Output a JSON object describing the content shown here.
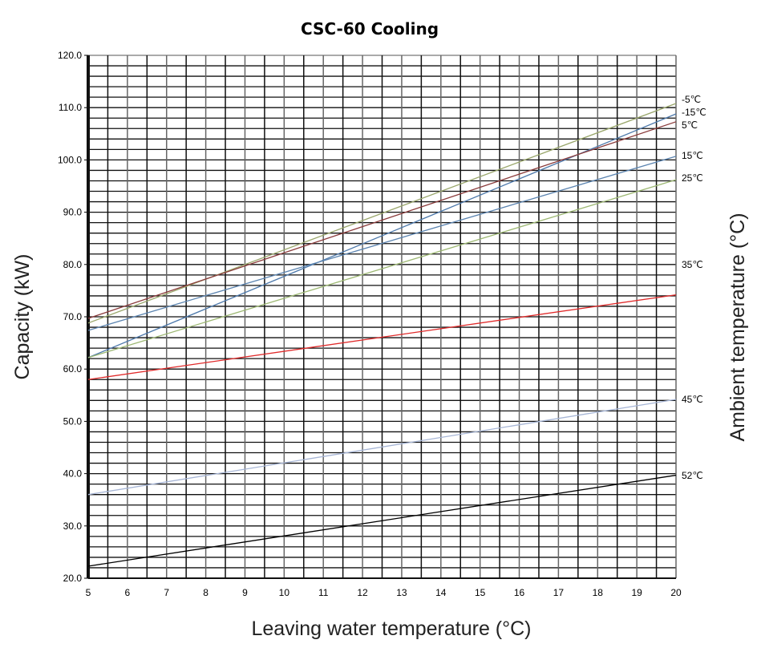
{
  "chart_data": {
    "type": "line",
    "title": "CSC-60 Cooling",
    "xlabel": "Leaving water temperature (°C)",
    "ylabel": "Capacity (kW)",
    "y2label": "Ambient temperature (°C)",
    "xlim": [
      5,
      20
    ],
    "ylim": [
      20,
      120
    ],
    "xticks": [
      "5",
      "6",
      "7",
      "8",
      "9",
      "10",
      "11",
      "12",
      "13",
      "14",
      "15",
      "16",
      "17",
      "18",
      "19",
      "20"
    ],
    "yticks": [
      "20.0",
      "30.0",
      "40.0",
      "50.0",
      "60.0",
      "70.0",
      "80.0",
      "90.0",
      "100.0",
      "110.0",
      "120.0"
    ],
    "grid": true,
    "series": [
      {
        "name": "-5℃",
        "color": "#9aa76c",
        "x": [
          5,
          20
        ],
        "y": [
          68.8,
          110.8
        ]
      },
      {
        "name": "-15℃",
        "color": "#4d79ab",
        "x": [
          5,
          20
        ],
        "y": [
          62.2,
          108.8
        ]
      },
      {
        "name": "5℃",
        "color": "#8a3b3b",
        "x": [
          5,
          20
        ],
        "y": [
          69.7,
          107.3
        ]
      },
      {
        "name": "15℃",
        "color": "#5b84b0",
        "x": [
          5,
          20
        ],
        "y": [
          67.4,
          100.7
        ]
      },
      {
        "name": "25℃",
        "color": "#9db873",
        "x": [
          5,
          20
        ],
        "y": [
          62.2,
          96.2
        ]
      },
      {
        "name": "35℃",
        "color": "#e02a2a",
        "x": [
          5,
          20
        ],
        "y": [
          58.0,
          74.2
        ]
      },
      {
        "name": "45℃",
        "color": "#a7b6d6",
        "x": [
          5,
          20
        ],
        "y": [
          36.0,
          54.2
        ]
      },
      {
        "name": "52℃",
        "color": "#000000",
        "x": [
          5,
          20
        ],
        "y": [
          22.3,
          39.7
        ]
      }
    ]
  }
}
